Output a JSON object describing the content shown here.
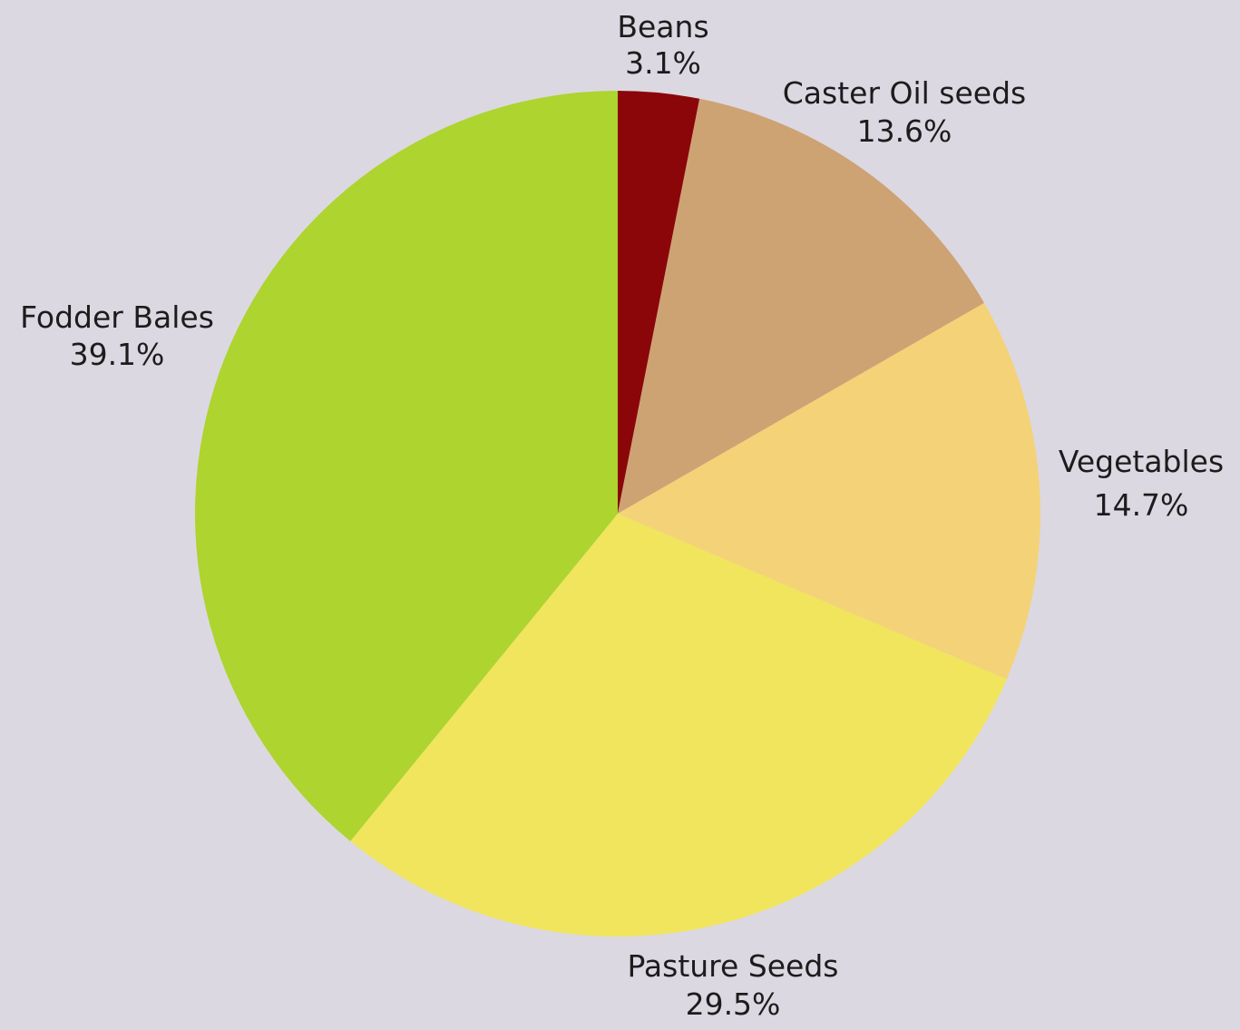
{
  "chart_data": {
    "type": "pie",
    "title": "",
    "start_angle_deg": 0,
    "direction": "clockwise",
    "slices": [
      {
        "label": "Beans",
        "value": 3.1,
        "value_label": "3.1%",
        "color": "#8b0609"
      },
      {
        "label": "Caster Oil seeds",
        "value": 13.6,
        "value_label": "13.6%",
        "color": "#cda374"
      },
      {
        "label": "Vegetables",
        "value": 14.7,
        "value_label": "14.7%",
        "color": "#f4d277"
      },
      {
        "label": "Pasture Seeds",
        "value": 29.5,
        "value_label": "29.5%",
        "color": "#f0e55d"
      },
      {
        "label": "Fodder Bales",
        "value": 39.1,
        "value_label": "39.1%",
        "color": "#add42f"
      }
    ]
  },
  "colors": {
    "background": "#dcd8e2",
    "label_text": "#1c1c1c"
  }
}
